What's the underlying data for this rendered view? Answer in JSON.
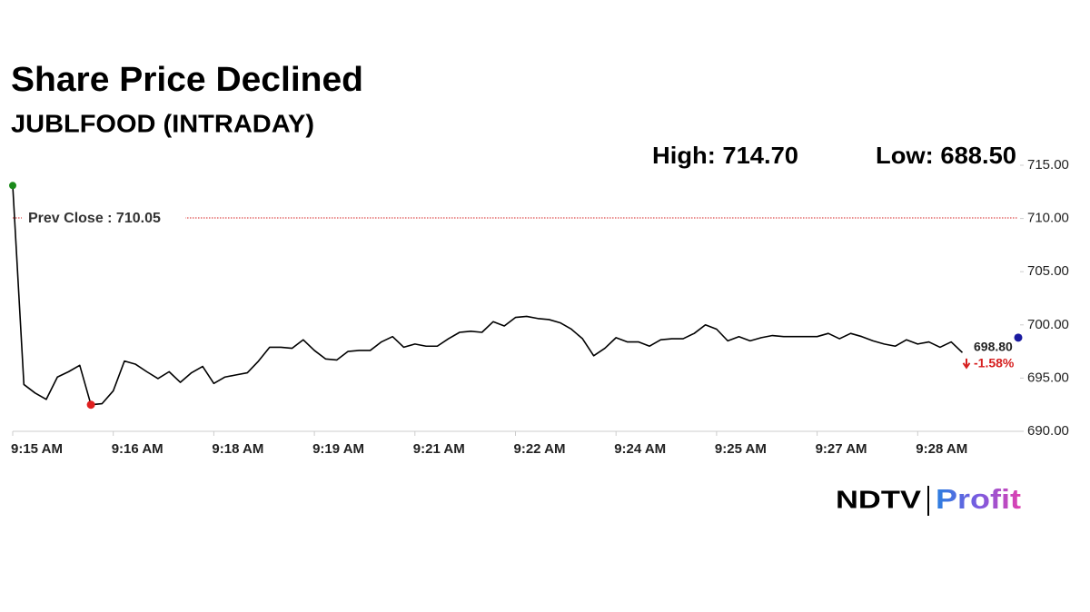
{
  "chart_data": {
    "type": "line",
    "title": "Share Price Declined",
    "subtitle": "JUBLFOOD (INTRADAY)",
    "high_label": "High: 714.70",
    "low_label": "Low: 688.50",
    "prev_close": {
      "label": "Prev Close : 710.05",
      "value": 710.05,
      "color": "#d62020"
    },
    "last_label": "698.80",
    "change_label": "-1.58%",
    "change_color": "#d62020",
    "color": "#000000",
    "start_color": "#1a8a1a",
    "low_color": "#e02020",
    "end_color": "#1a1aa0",
    "low_index": 7,
    "categories": [
      "9:15 AM",
      null,
      null,
      null,
      null,
      null,
      null,
      null,
      null,
      "9:16 AM",
      null,
      null,
      null,
      null,
      null,
      null,
      null,
      null,
      "9:18 AM",
      null,
      null,
      null,
      null,
      null,
      null,
      null,
      null,
      "9:19 AM",
      null,
      null,
      null,
      null,
      null,
      null,
      null,
      null,
      "9:21 AM",
      null,
      null,
      null,
      null,
      null,
      null,
      null,
      null,
      "9:22 AM",
      null,
      null,
      null,
      null,
      null,
      null,
      null,
      null,
      "9:24 AM",
      null,
      null,
      null,
      null,
      null,
      null,
      null,
      null,
      "9:25 AM",
      null,
      null,
      null,
      null,
      null,
      null,
      null,
      null,
      "9:27 AM",
      null,
      null,
      null,
      null,
      null,
      null,
      null,
      null,
      "9:28 AM",
      null,
      null,
      null,
      null,
      null,
      null,
      null,
      null,
      null
    ],
    "values": [
      713.1,
      694.4,
      693.6,
      693.0,
      695.1,
      695.6,
      696.2,
      692.5,
      692.6,
      693.8,
      696.6,
      696.3,
      695.6,
      694.95,
      695.6,
      694.6,
      695.5,
      696.1,
      694.5,
      695.1,
      695.3,
      695.5,
      696.6,
      697.9,
      697.9,
      697.8,
      698.6,
      697.6,
      696.8,
      696.7,
      697.5,
      697.6,
      697.6,
      698.4,
      698.9,
      697.9,
      698.2,
      698.0,
      698.0,
      698.7,
      699.3,
      699.4,
      699.3,
      700.3,
      699.9,
      700.7,
      700.8,
      700.6,
      700.5,
      700.2,
      699.6,
      698.7,
      697.1,
      697.8,
      698.8,
      698.4,
      698.4,
      698.0,
      698.6,
      698.7,
      698.7,
      699.2,
      700.0,
      699.6,
      698.5,
      698.9,
      698.5,
      698.8,
      699.0,
      698.9,
      698.9,
      698.9,
      698.9,
      699.2,
      698.7,
      699.2,
      698.9,
      698.5,
      698.2,
      698.0,
      698.6,
      698.2,
      698.4,
      697.9,
      698.4,
      697.4,
      null,
      null,
      null,
      null,
      698.8
    ],
    "ylim": [
      690,
      715
    ],
    "yticks": [
      {
        "value": 690,
        "label": "690.00"
      },
      {
        "value": 695,
        "label": "695.00"
      },
      {
        "value": 700,
        "label": "700.00"
      },
      {
        "value": 705,
        "label": "705.00"
      },
      {
        "value": 710,
        "label": "710.00"
      },
      {
        "value": 715,
        "label": "715.00"
      }
    ],
    "grid": false
  },
  "logo": {
    "left": "NDTV",
    "right": "Profit"
  }
}
